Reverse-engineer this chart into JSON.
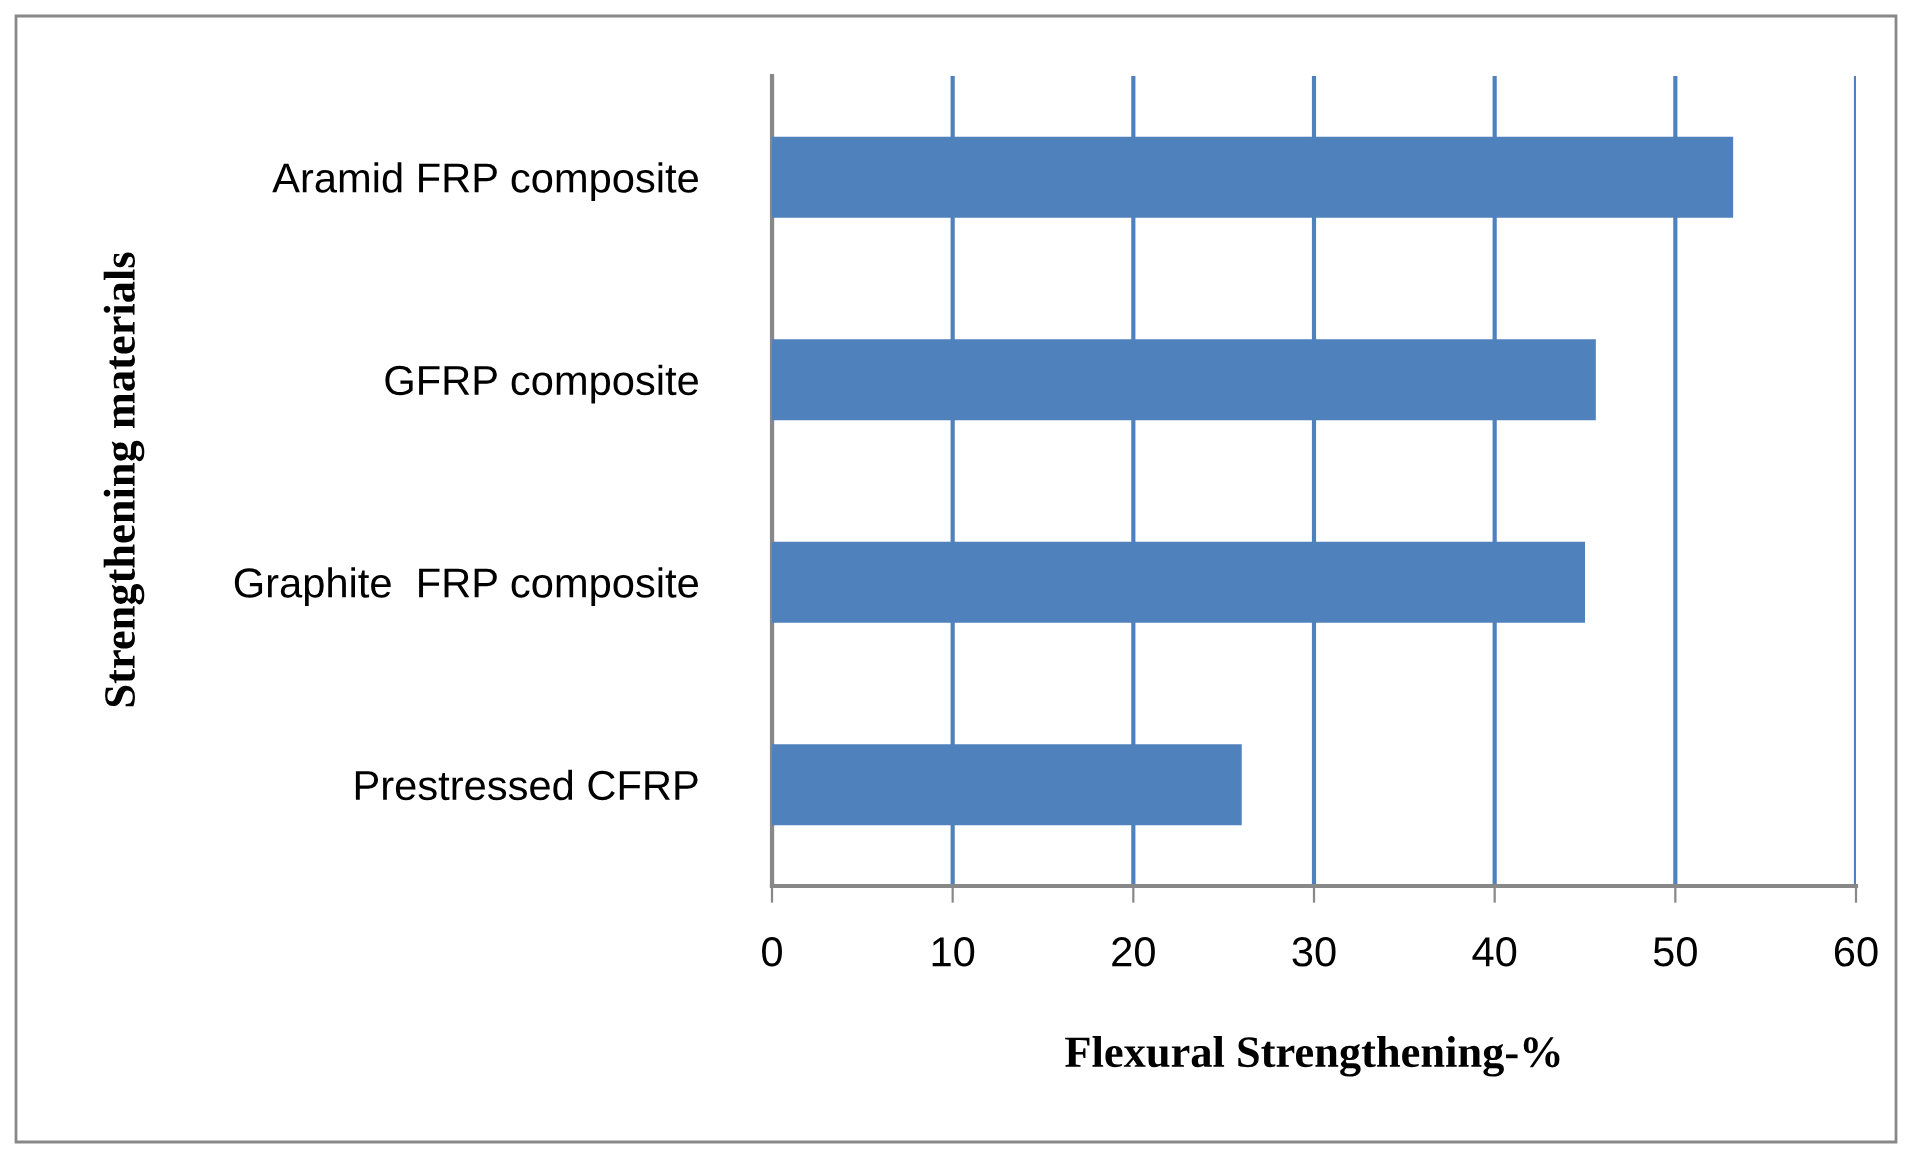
{
  "chart_data": {
    "type": "bar",
    "orientation": "horizontal",
    "xlabel": "Flexural Strengthening-%",
    "ylabel": "Strengthening materials",
    "categories": [
      "Aramid FRP composite",
      "GFRP composite",
      "Graphite  FRP composite",
      "Prestressed CFRP"
    ],
    "values": [
      53.2,
      45.6,
      45.0,
      26
    ],
    "color": "#4f81bd",
    "xlim": [
      0,
      60
    ],
    "xticks": [
      0,
      10,
      20,
      30,
      40,
      50,
      60
    ],
    "grid": "x",
    "legend": false
  }
}
